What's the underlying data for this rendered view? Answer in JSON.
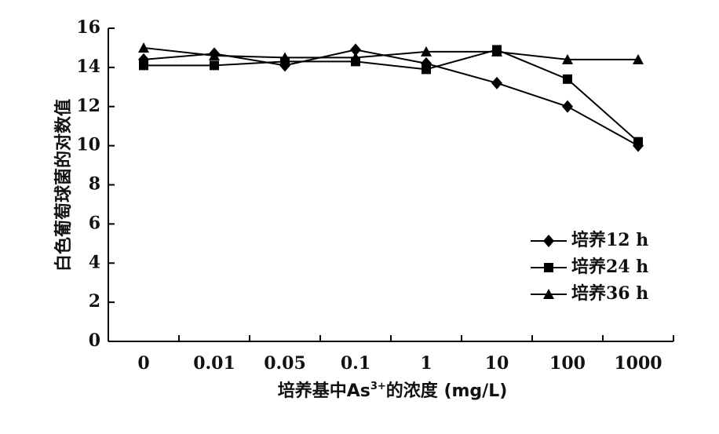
{
  "chart_data": {
    "type": "line",
    "title": "",
    "categories": [
      "0",
      "0.01",
      "0.05",
      "0.1",
      "1",
      "10",
      "100",
      "1000"
    ],
    "xlabel": "培养基中As",
    "xlabel_sup": "3+",
    "xlabel_tail": "的浓度 (mg/L)",
    "ylabel": "白色葡萄球菌的对数值",
    "ylim": [
      0,
      16
    ],
    "yticks": [
      "0",
      "2",
      "4",
      "6",
      "8",
      "10",
      "12",
      "14",
      "16"
    ],
    "grid": false,
    "legend_position": "right",
    "series": [
      {
        "name": "培养12 h",
        "marker": "diamond",
        "values": [
          14.4,
          14.7,
          14.1,
          14.9,
          14.2,
          13.2,
          12.0,
          10.0
        ]
      },
      {
        "name": "培养24 h",
        "marker": "square",
        "values": [
          14.1,
          14.1,
          14.3,
          14.3,
          13.9,
          14.9,
          13.4,
          10.2
        ]
      },
      {
        "name": "培养36 h",
        "marker": "triangle",
        "values": [
          15.0,
          14.6,
          14.5,
          14.5,
          14.8,
          14.8,
          14.4,
          14.4
        ]
      }
    ]
  }
}
